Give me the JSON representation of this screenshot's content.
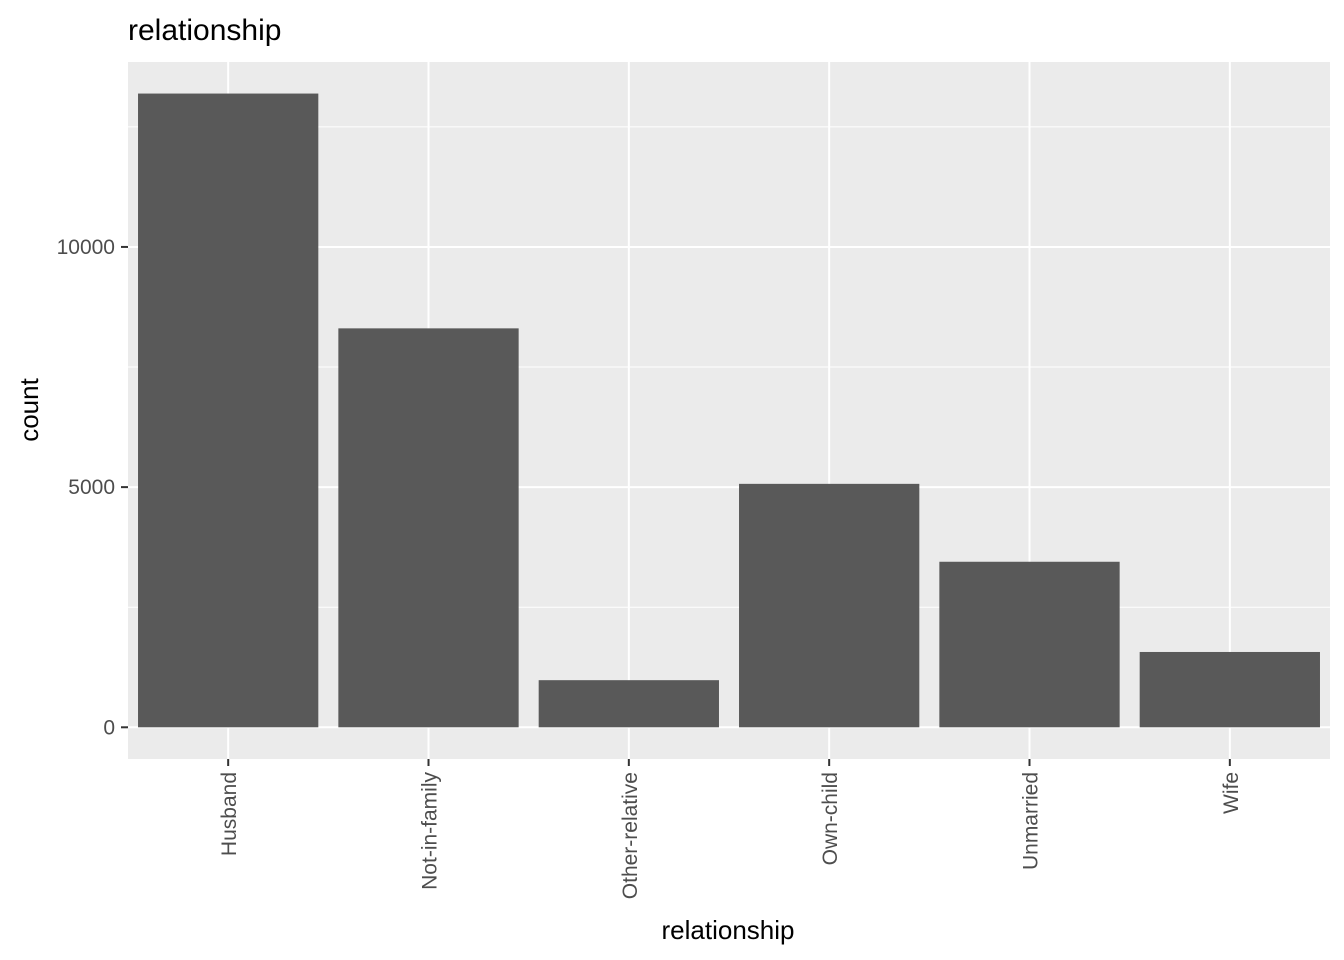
{
  "chart_data": {
    "type": "bar",
    "title": "relationship",
    "xlabel": "relationship",
    "ylabel": "count",
    "categories": [
      "Husband",
      "Not-in-family",
      "Other-relative",
      "Own-child",
      "Unmarried",
      "Wife"
    ],
    "values": [
      13193,
      8305,
      981,
      5068,
      3446,
      1568
    ],
    "yticks": [
      0,
      5000,
      10000
    ],
    "ytick_labels": [
      "0",
      "5000",
      "10000"
    ],
    "ylim": [
      -660,
      13850
    ],
    "grid": true,
    "legend": "none",
    "colors": {
      "bar": "#595959",
      "panel": "#ebebeb",
      "grid": "#ffffff",
      "tick": "#333333"
    }
  }
}
